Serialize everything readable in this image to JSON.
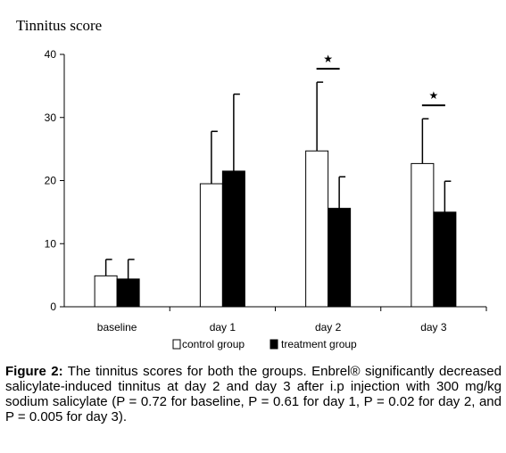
{
  "chart_data": {
    "type": "bar",
    "ylabel": "Tinnitus score",
    "ylim": [
      0,
      40
    ],
    "yticks": [
      "0",
      "10",
      "20",
      "30",
      "40"
    ],
    "categories": [
      "baseline",
      "day 1",
      "day 2",
      "day 3"
    ],
    "series": [
      {
        "name": "control group",
        "values": [
          4.9,
          19.5,
          24.7,
          22.7
        ],
        "errors": [
          2.6,
          8.3,
          10.9,
          7.1
        ],
        "color": "#ffffff"
      },
      {
        "name": "treatment group",
        "values": [
          4.4,
          21.5,
          15.6,
          15.0
        ],
        "errors": [
          3.1,
          12.2,
          5.0,
          4.9
        ],
        "color": "#000000"
      }
    ],
    "significance": [
      false,
      false,
      true,
      true
    ],
    "significance_symbol": "★",
    "legend_position": "bottom",
    "grid": false
  },
  "caption": {
    "label": "Figure 2:",
    "text": " The tinnitus scores for both the groups. Enbrel® significantly decreased salicylate-induced tinnitus at day 2 and day 3 after i.p injection with 300 mg/kg sodium salicylate (P = 0.72 for baseline, P = 0.61 for day 1, P = 0.02 for day 2, and P = 0.005 for day 3)."
  }
}
